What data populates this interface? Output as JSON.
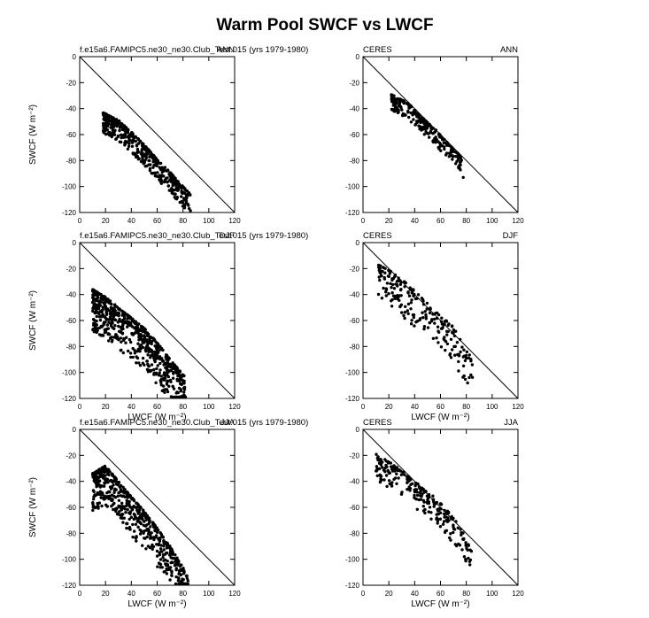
{
  "title": "Warm Pool SWCF vs LWCF",
  "axes": {
    "xlabel": "LWCF (W m⁻²)",
    "ylabel": "SWCF (W m⁻²)",
    "xlim": [
      0,
      120
    ],
    "ylim": [
      -120,
      0
    ],
    "xticks": [
      "0",
      "20",
      "40",
      "60",
      "80",
      "100",
      "120"
    ],
    "yticks": [
      "0",
      "-20",
      "-40",
      "-60",
      "-80",
      "-100",
      "-120"
    ]
  },
  "chart_data": [
    {
      "type": "scatter",
      "source": "f.e15a6.FAMIPC5.ne30_ne30.Club_Test.015 (yrs 1979-1980)",
      "season": "ANN",
      "cloud": {
        "x_range": [
          18,
          86
        ],
        "edge_y": [
          [
            18,
            -43
          ],
          [
            30,
            -49
          ],
          [
            40,
            -58
          ],
          [
            50,
            -68
          ],
          [
            60,
            -79
          ],
          [
            70,
            -89
          ],
          [
            80,
            -100
          ],
          [
            86,
            -106
          ]
        ],
        "spread": 16,
        "count": 480
      },
      "reference_line": [
        [
          0,
          0
        ],
        [
          120,
          -120
        ]
      ]
    },
    {
      "type": "scatter",
      "source": "CERES",
      "season": "ANN",
      "cloud": {
        "x_range": [
          22,
          78
        ],
        "edge_y": [
          [
            22,
            -29
          ],
          [
            35,
            -36
          ],
          [
            45,
            -46
          ],
          [
            55,
            -55
          ],
          [
            65,
            -66
          ],
          [
            75,
            -76
          ],
          [
            78,
            -82
          ]
        ],
        "spread": 12,
        "count": 260
      },
      "reference_line": [
        [
          0,
          0
        ],
        [
          120,
          -120
        ]
      ]
    },
    {
      "type": "scatter",
      "source": "f.e15a6.FAMIPC5.ne30_ne30.Club_Test.015 (yrs 1979-1980)",
      "season": "DJF",
      "cloud": {
        "x_range": [
          10,
          82
        ],
        "edge_y": [
          [
            10,
            -36
          ],
          [
            20,
            -42
          ],
          [
            30,
            -50
          ],
          [
            40,
            -58
          ],
          [
            50,
            -66
          ],
          [
            60,
            -77
          ],
          [
            70,
            -90
          ],
          [
            82,
            -104
          ]
        ],
        "spread": 32,
        "count": 650
      },
      "reference_line": [
        [
          0,
          0
        ],
        [
          120,
          -120
        ]
      ]
    },
    {
      "type": "scatter",
      "source": "CERES",
      "season": "DJF",
      "cloud": {
        "x_range": [
          12,
          86
        ],
        "edge_y": [
          [
            12,
            -17
          ],
          [
            25,
            -24
          ],
          [
            40,
            -37
          ],
          [
            55,
            -52
          ],
          [
            70,
            -65
          ],
          [
            80,
            -80
          ],
          [
            86,
            -96
          ]
        ],
        "spread": 28,
        "count": 220
      },
      "reference_line": [
        [
          0,
          0
        ],
        [
          120,
          -120
        ]
      ]
    },
    {
      "type": "scatter",
      "source": "f.e15a6.FAMIPC5.ne30_ne30.Club_Test.015 (yrs 1979-1980)",
      "season": "JJA",
      "cloud": {
        "x_range": [
          10,
          84
        ],
        "edge_y": [
          [
            10,
            -34
          ],
          [
            20,
            -28
          ],
          [
            30,
            -40
          ],
          [
            40,
            -52
          ],
          [
            50,
            -63
          ],
          [
            60,
            -76
          ],
          [
            70,
            -90
          ],
          [
            84,
            -113
          ]
        ],
        "spread": 30,
        "count": 600
      },
      "reference_line": [
        [
          0,
          0
        ],
        [
          120,
          -120
        ]
      ]
    },
    {
      "type": "scatter",
      "source": "CERES",
      "season": "JJA",
      "cloud": {
        "x_range": [
          10,
          84
        ],
        "edge_y": [
          [
            10,
            -19
          ],
          [
            25,
            -28
          ],
          [
            40,
            -40
          ],
          [
            55,
            -52
          ],
          [
            65,
            -62
          ],
          [
            75,
            -74
          ],
          [
            84,
            -94
          ]
        ],
        "spread": 20,
        "count": 240
      },
      "reference_line": [
        [
          0,
          0
        ],
        [
          120,
          -120
        ]
      ]
    }
  ]
}
